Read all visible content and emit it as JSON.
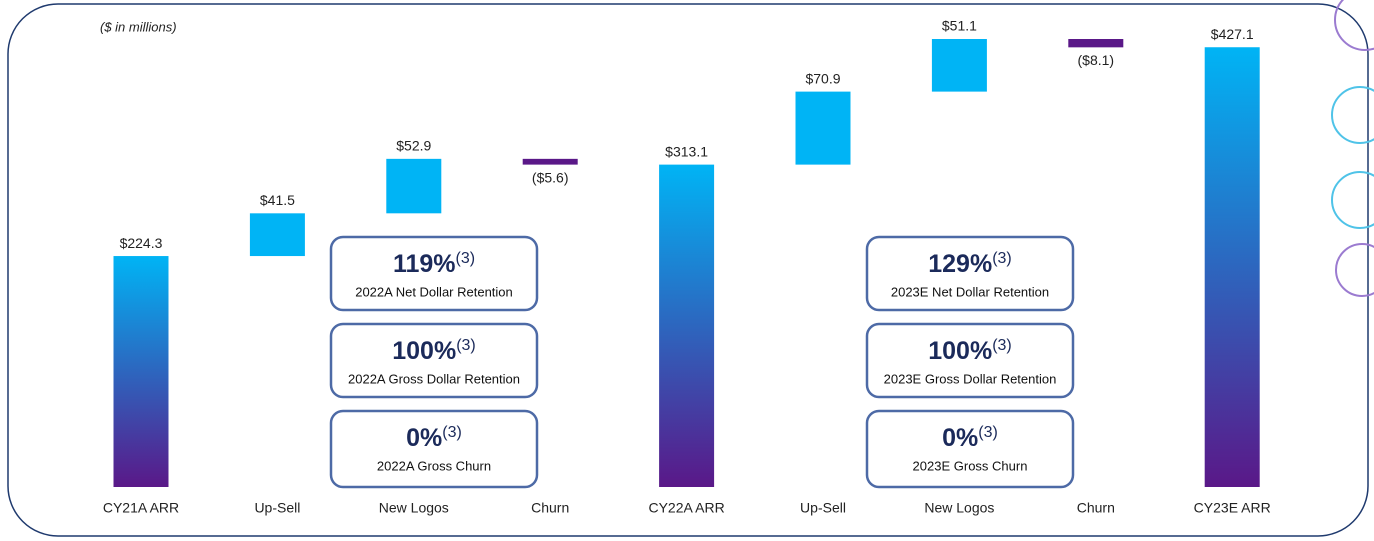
{
  "chart_data": {
    "type": "waterfall",
    "subtitle": "($ in millions)",
    "categories": [
      "CY21A ARR",
      "Up-Sell",
      "New Logos",
      "Churn",
      "CY22A ARR",
      "Up-Sell",
      "New Logos",
      "Churn",
      "CY23E ARR"
    ],
    "measure": [
      "absolute",
      "relative",
      "relative",
      "relative",
      "absolute",
      "relative",
      "relative",
      "relative",
      "absolute"
    ],
    "values": [
      224.3,
      41.5,
      52.9,
      -5.6,
      313.1,
      70.9,
      51.1,
      -8.1,
      427.1
    ],
    "value_labels": [
      "$224.3",
      "$41.5",
      "$52.9",
      "($5.6)",
      "$313.1",
      "$70.9",
      "$51.1",
      "($8.1)",
      "$427.1"
    ],
    "colors": {
      "total_top": "#00b4f5",
      "total_bottom": "#5a1888",
      "increase": "#00b4f5",
      "decrease": "#5a1888"
    },
    "annotations": [
      {
        "value": "119%",
        "note": "(3)",
        "label": "2022A Net Dollar Retention"
      },
      {
        "value": "100%",
        "note": "(3)",
        "label": "2022A Gross Dollar Retention"
      },
      {
        "value": "0%",
        "note": "(3)",
        "label": "2022A Gross Churn"
      },
      {
        "value": "129%",
        "note": "(3)",
        "label": "2023E Net Dollar Retention"
      },
      {
        "value": "100%",
        "note": "(3)",
        "label": "2023E Gross Dollar Retention"
      },
      {
        "value": "0%",
        "note": "(3)",
        "label": "2023E Gross Churn"
      }
    ]
  }
}
